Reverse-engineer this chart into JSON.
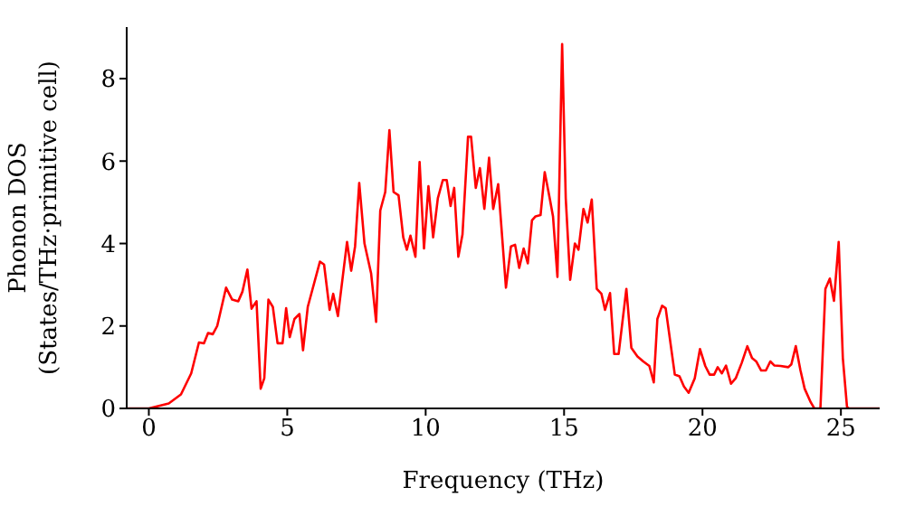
{
  "chart_data": {
    "type": "line",
    "xlabel": "Frequency (THz)",
    "ylabel": "Phonon DOS\n(States/THz·primitive cell)",
    "x": [
      -0.8,
      0,
      0.72,
      1.16,
      1.53,
      1.81,
      1.99,
      2.14,
      2.31,
      2.47,
      2.79,
      3.01,
      3.23,
      3.38,
      3.56,
      3.71,
      3.89,
      4.04,
      4.17,
      4.32,
      4.48,
      4.65,
      4.83,
      4.96,
      5.09,
      5.26,
      5.44,
      5.57,
      5.74,
      6.18,
      6.33,
      6.53,
      6.66,
      6.83,
      7.16,
      7.31,
      7.45,
      7.6,
      7.79,
      8.03,
      8.21,
      8.36,
      8.54,
      8.69,
      8.84,
      9.02,
      9.19,
      9.32,
      9.45,
      9.63,
      9.78,
      9.94,
      10.1,
      10.27,
      10.44,
      10.62,
      10.76,
      10.9,
      11.03,
      11.18,
      11.33,
      11.53,
      11.64,
      11.81,
      11.96,
      12.12,
      12.29,
      12.44,
      12.62,
      12.9,
      13.08,
      13.23,
      13.38,
      13.54,
      13.69,
      13.84,
      13.97,
      14.15,
      14.3,
      14.48,
      14.6,
      14.76,
      14.93,
      15.06,
      15.22,
      15.39,
      15.52,
      15.7,
      15.85,
      16.0,
      16.18,
      16.35,
      16.48,
      16.66,
      16.81,
      16.97,
      17.25,
      17.43,
      17.65,
      17.86,
      18.08,
      18.24,
      18.37,
      18.54,
      18.67,
      19.0,
      19.17,
      19.33,
      19.5,
      19.72,
      19.91,
      20.1,
      20.26,
      20.42,
      20.55,
      20.7,
      20.85,
      21.03,
      21.2,
      21.42,
      21.62,
      21.79,
      21.94,
      22.12,
      22.29,
      22.45,
      22.6,
      22.82,
      23.1,
      23.21,
      23.37,
      23.54,
      23.69,
      23.91,
      24.04,
      24.26,
      24.44,
      24.6,
      24.75,
      24.92,
      25.07,
      25.22,
      25.29,
      26.4
    ],
    "series": [
      {
        "color": "#ff0000",
        "values": [
          0,
          0,
          0.12,
          0.34,
          0.85,
          1.6,
          1.58,
          1.83,
          1.8,
          2.0,
          2.93,
          2.64,
          2.6,
          2.83,
          3.37,
          2.42,
          2.6,
          0.48,
          0.73,
          2.64,
          2.46,
          1.58,
          1.58,
          2.43,
          1.73,
          2.17,
          2.29,
          1.41,
          2.46,
          3.56,
          3.49,
          2.39,
          2.78,
          2.24,
          4.04,
          3.34,
          3.93,
          5.47,
          4.0,
          3.27,
          2.1,
          4.8,
          5.25,
          6.75,
          5.25,
          5.17,
          4.15,
          3.85,
          4.19,
          3.68,
          5.98,
          3.88,
          5.39,
          4.15,
          5.1,
          5.54,
          5.54,
          4.91,
          5.35,
          3.68,
          4.22,
          6.59,
          6.59,
          5.35,
          5.83,
          4.84,
          6.08,
          4.84,
          5.44,
          2.93,
          3.93,
          3.97,
          3.41,
          3.88,
          3.52,
          4.56,
          4.66,
          4.69,
          5.73,
          5.1,
          4.66,
          3.19,
          8.84,
          5.1,
          3.12,
          4.0,
          3.85,
          4.84,
          4.51,
          5.07,
          2.9,
          2.78,
          2.39,
          2.8,
          1.32,
          1.32,
          2.9,
          1.47,
          1.26,
          1.14,
          1.03,
          0.63,
          2.17,
          2.49,
          2.43,
          0.82,
          0.78,
          0.53,
          0.38,
          0.73,
          1.44,
          1.03,
          0.82,
          0.82,
          1.0,
          0.85,
          1.04,
          0.6,
          0.73,
          1.11,
          1.51,
          1.22,
          1.14,
          0.92,
          0.92,
          1.14,
          1.04,
          1.03,
          1.0,
          1.07,
          1.51,
          0.92,
          0.48,
          0.15,
          0,
          0,
          2.9,
          3.15,
          2.61,
          4.04,
          1.22,
          0.04,
          0,
          0
        ]
      }
    ],
    "xlim": [
      -0.8,
      26.4
    ],
    "xticks": [
      0,
      5,
      10,
      15,
      20,
      25
    ],
    "ylim": [
      0,
      9.25
    ],
    "yticks": [
      0,
      2,
      4,
      6,
      8
    ],
    "grid": false,
    "legend": false,
    "marker": "none",
    "line_style": "solid"
  }
}
